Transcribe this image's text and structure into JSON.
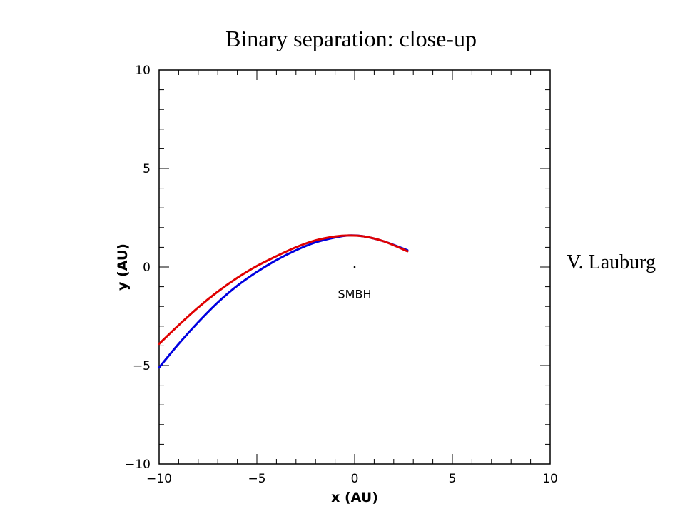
{
  "slide": {
    "title": "Binary separation: close-up",
    "credit": "V. Lauburg"
  },
  "chart_data": {
    "type": "line",
    "xlabel": "x (AU)",
    "ylabel": "y (AU)",
    "xlim": [
      -10,
      10
    ],
    "ylim": [
      -10,
      10
    ],
    "xticks": [
      -10,
      -5,
      0,
      5,
      10
    ],
    "yticks": [
      -10,
      -5,
      0,
      5,
      10
    ],
    "xtick_labels": [
      "−10",
      "−5",
      "0",
      "5",
      "10"
    ],
    "ytick_labels": [
      "−10",
      "−5",
      "0",
      "5",
      "10"
    ],
    "minor_tick_step": 1,
    "grid": false,
    "annotations": [
      {
        "text": "SMBH",
        "x": 0,
        "y": -1.4
      }
    ],
    "markers": [
      {
        "x": 0,
        "y": 0
      }
    ],
    "series": [
      {
        "color": "#e00000",
        "x": [
          -10,
          -9,
          -8,
          -7,
          -6,
          -5,
          -4,
          -3,
          -2,
          -1,
          -0.3,
          0.5,
          1.5,
          2.7
        ],
        "y": [
          -3.9,
          -2.95,
          -2.05,
          -1.25,
          -0.55,
          0.05,
          0.55,
          1.0,
          1.35,
          1.55,
          1.6,
          1.55,
          1.3,
          0.8
        ]
      },
      {
        "color": "#0000e0",
        "x": [
          -10,
          -9,
          -8,
          -7,
          -6,
          -5,
          -4,
          -3,
          -2,
          -1,
          -0.3,
          0.5,
          1.5,
          2.7
        ],
        "y": [
          -5.1,
          -3.9,
          -2.8,
          -1.8,
          -0.95,
          -0.25,
          0.35,
          0.85,
          1.25,
          1.5,
          1.6,
          1.55,
          1.3,
          0.85
        ]
      }
    ]
  }
}
